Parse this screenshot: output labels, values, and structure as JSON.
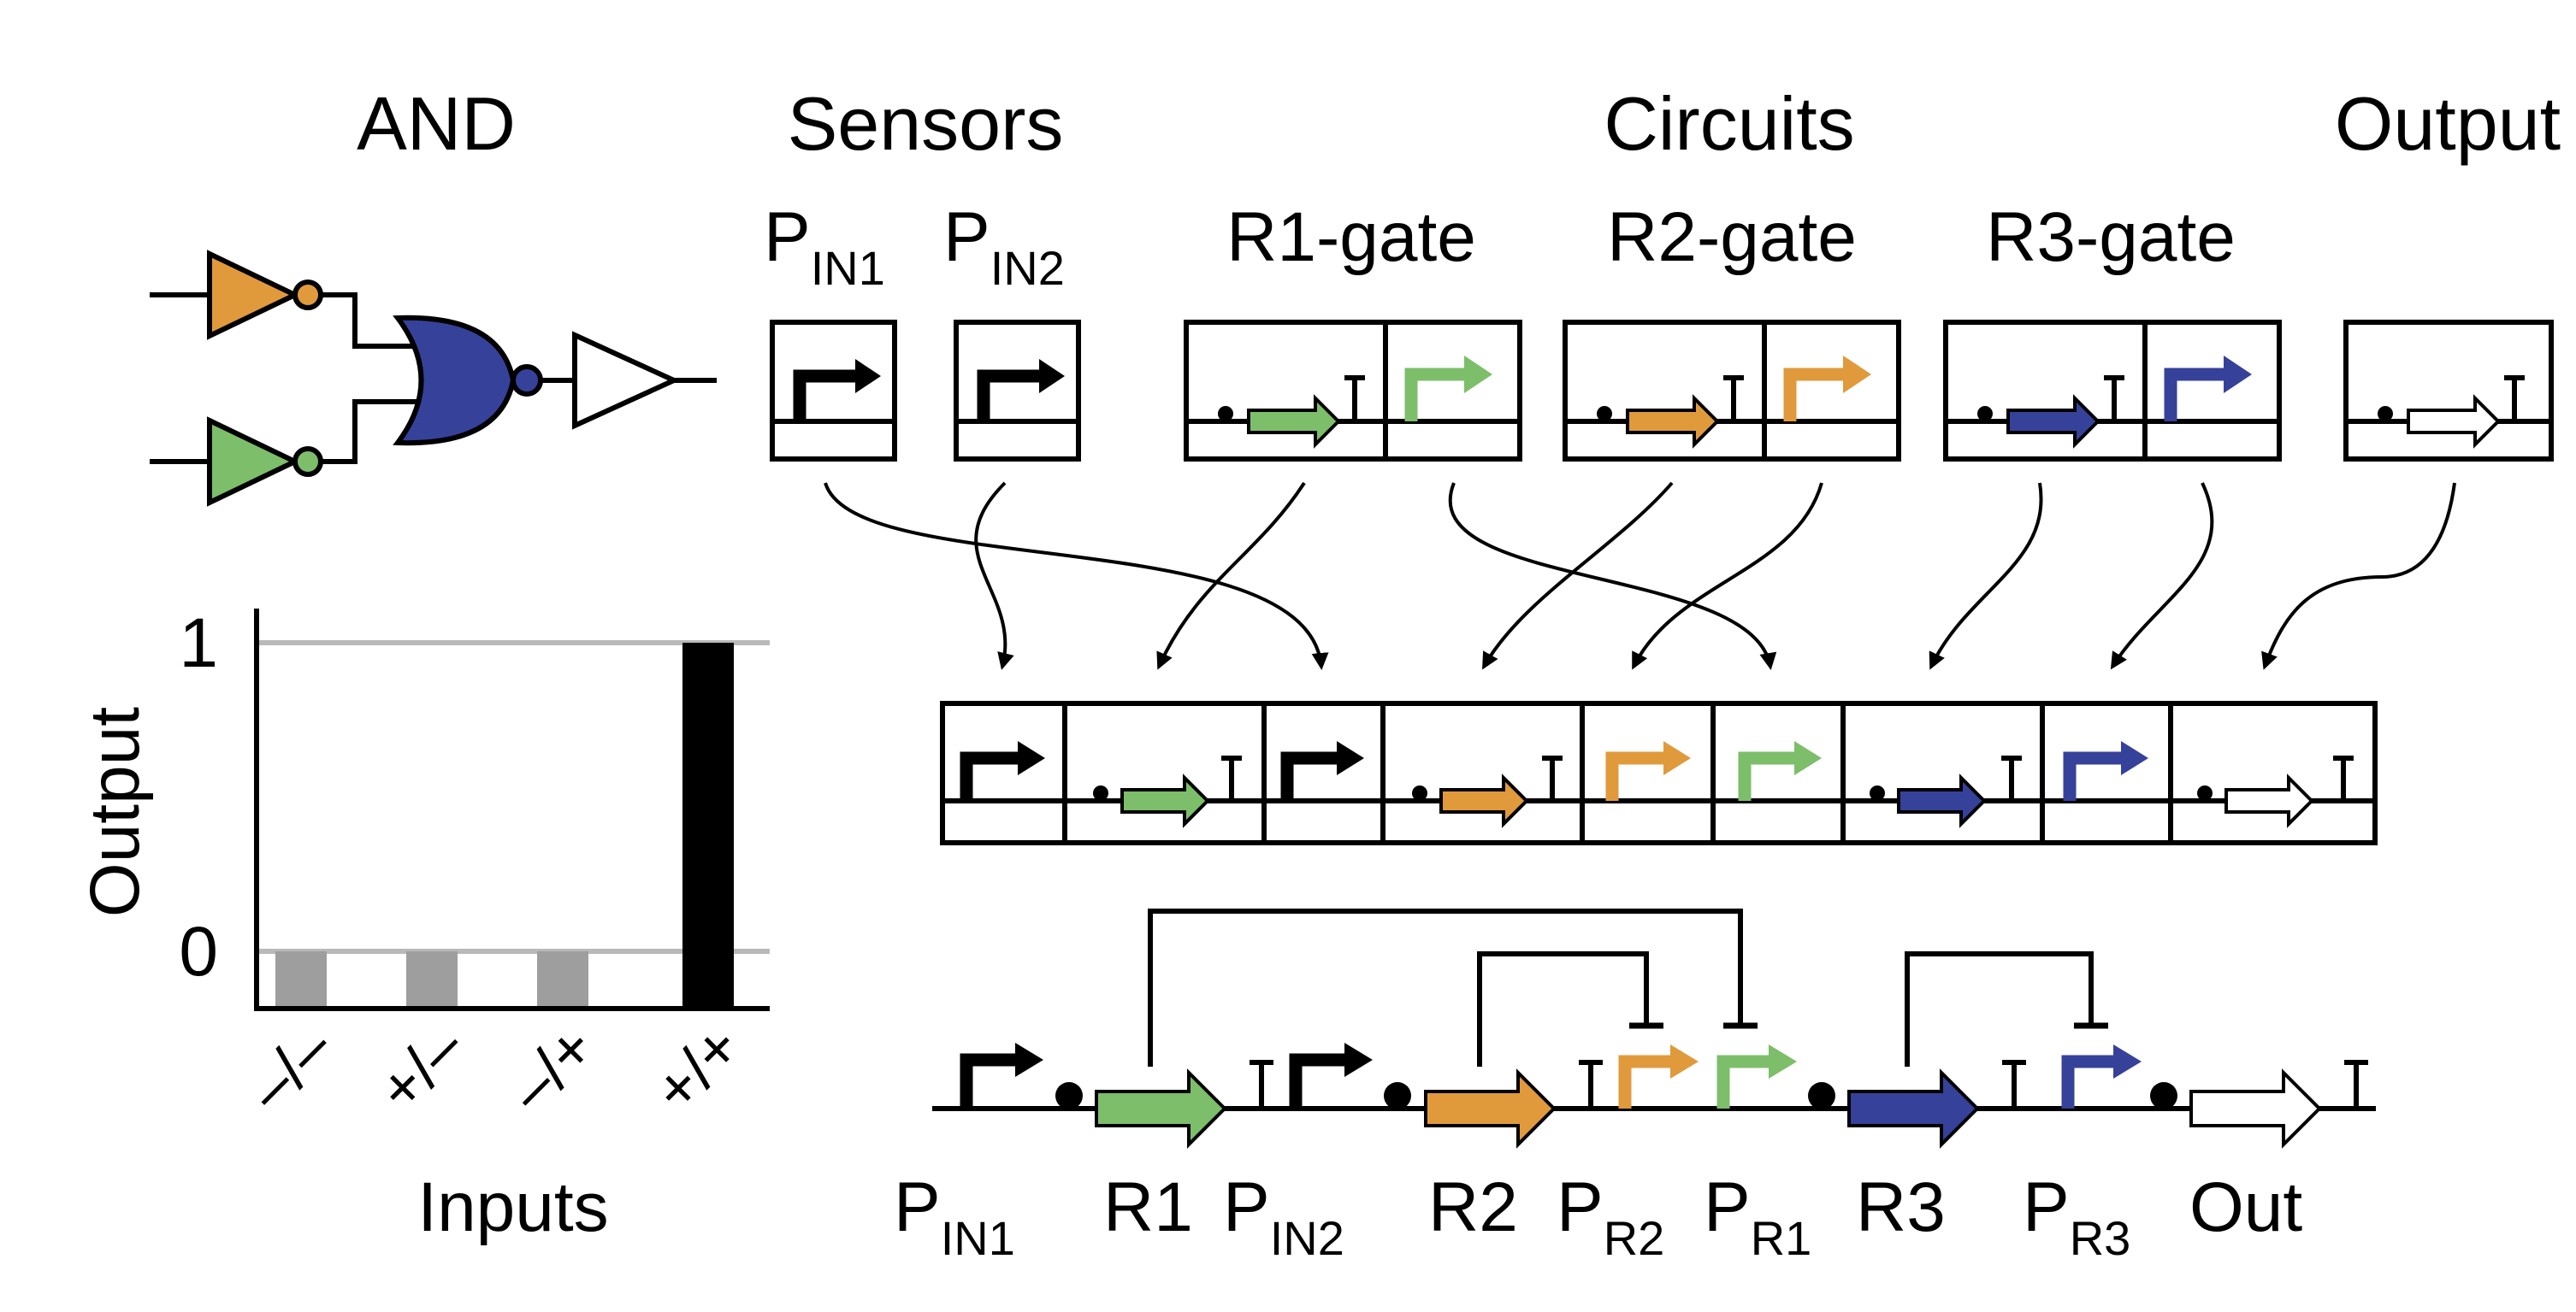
{
  "colors": {
    "orange": "#E09A3C",
    "green": "#7DBE6A",
    "navy": "#36419A",
    "gray": "#9E9E9E",
    "light_gray": "#B9B9B9",
    "black": "#000000",
    "white": "#FFFFFF"
  },
  "headers": {
    "and": "AND",
    "sensors": "Sensors",
    "circuits": "Circuits",
    "output": "Output"
  },
  "part_labels": {
    "pin1_main": "P",
    "pin1_sub": "IN1",
    "pin2_main": "P",
    "pin2_sub": "IN2",
    "r1_gate": "R1-gate",
    "r2_gate": "R2-gate",
    "r3_gate": "R3-gate"
  },
  "logic_gate": {
    "inputs": [
      "orange NOT gate",
      "green NOT gate"
    ],
    "combiner": "NOR gate",
    "output": "buffer",
    "icons": [
      "not-gate-icon",
      "nor-gate-icon",
      "buffer-gate-icon"
    ]
  },
  "chart_data": {
    "type": "bar",
    "ylabel": "Output",
    "xlabel": "Inputs",
    "categories": [
      "–/–",
      "+/–",
      "–/+",
      "+/+"
    ],
    "values": [
      0,
      0,
      0,
      1
    ],
    "bar_colors": [
      "#9E9E9E",
      "#9E9E9E",
      "#9E9E9E",
      "#000000"
    ],
    "yticks": [
      "0",
      "1"
    ],
    "ylim": [
      0,
      1.08
    ],
    "reference_lines": [
      0,
      1
    ]
  },
  "circuit_labels": [
    {
      "main": "P",
      "sub": "IN1"
    },
    {
      "main": "R1",
      "sub": ""
    },
    {
      "main": "P",
      "sub": "IN2"
    },
    {
      "main": "R2",
      "sub": ""
    },
    {
      "main": "P",
      "sub": "R2"
    },
    {
      "main": "P",
      "sub": "R1"
    },
    {
      "main": "R3",
      "sub": ""
    },
    {
      "main": "P",
      "sub": "R3"
    },
    {
      "main": "Out",
      "sub": ""
    }
  ]
}
